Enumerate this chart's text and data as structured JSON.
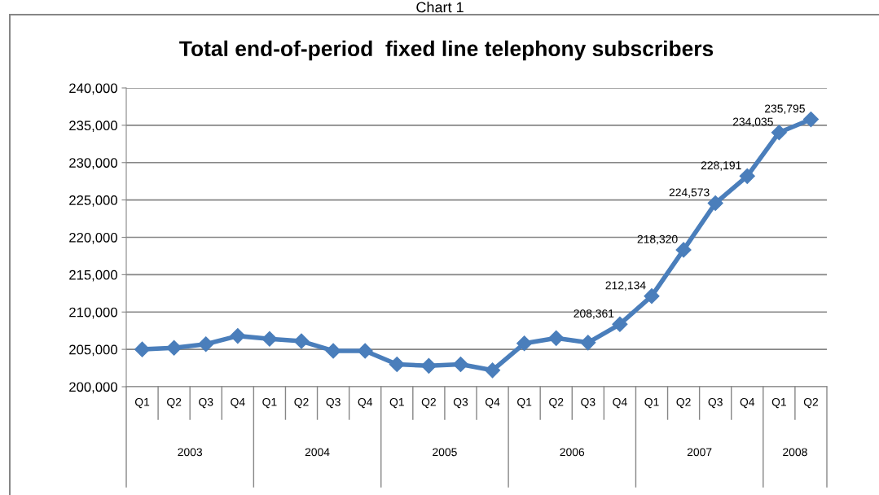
{
  "chart_data": {
    "type": "line",
    "title": "Total end-of-period  fixed line telephony subscribers",
    "annotations": [
      "Chart 1",
      "2003",
      "2004",
      "2005",
      "2006",
      "2007",
      "2008"
    ],
    "categories": [
      "Q1",
      "Q2",
      "Q3",
      "Q4",
      "Q1",
      "Q2",
      "Q3",
      "Q4",
      "Q1",
      "Q2",
      "Q3",
      "Q4",
      "Q1",
      "Q2",
      "Q3",
      "Q4",
      "Q1",
      "Q2",
      "Q3",
      "Q4",
      "Q1",
      "Q2"
    ],
    "series": [
      {
        "color": "#4a7ebb",
        "values": [
          205000,
          205200,
          205700,
          206800,
          206400,
          206100,
          204800,
          204800,
          203000,
          202800,
          203000,
          202200,
          205800,
          206500,
          205900,
          208361,
          212134,
          218320,
          224573,
          228191,
          234035,
          235795
        ],
        "value_labels": [
          null,
          null,
          null,
          null,
          null,
          null,
          null,
          null,
          null,
          null,
          null,
          null,
          null,
          null,
          null,
          "208,361",
          "212,134",
          "218,320",
          "224,573",
          "228,191",
          "234,035",
          "235,795"
        ]
      }
    ],
    "ylim": [
      200000,
      240000
    ],
    "yticks": [
      {
        "value": 200000,
        "label": "200,000"
      },
      {
        "value": 205000,
        "label": "205,000"
      },
      {
        "value": 210000,
        "label": "210,000"
      },
      {
        "value": 215000,
        "label": "215,000"
      },
      {
        "value": 220000,
        "label": "220,000"
      },
      {
        "value": 225000,
        "label": "225,000"
      },
      {
        "value": 230000,
        "label": "230,000"
      },
      {
        "value": 235000,
        "label": "235,000"
      },
      {
        "value": 240000,
        "label": "240,000"
      }
    ],
    "grid": "y",
    "legend": false,
    "marker": "diamond",
    "line_style": "solid"
  }
}
